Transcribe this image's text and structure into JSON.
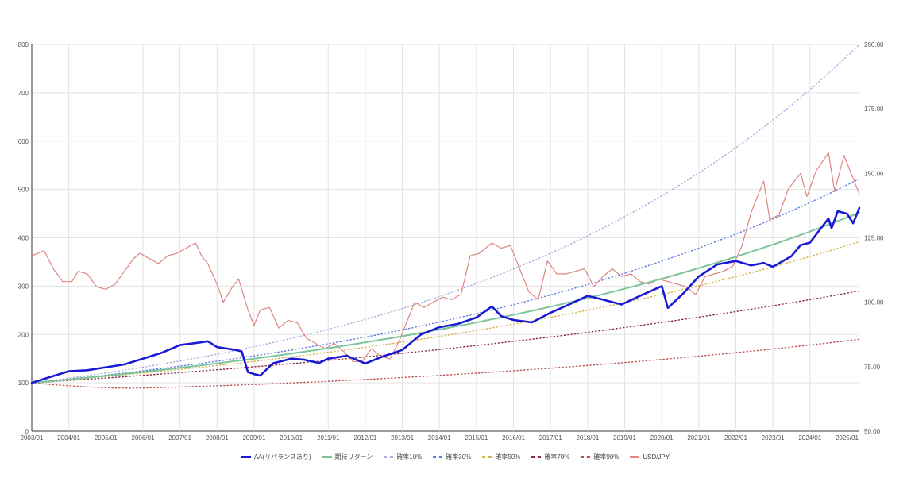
{
  "chart_data": {
    "type": "line",
    "title": "",
    "xlabel": "",
    "ylabel": "",
    "ylim": [
      0,
      800
    ],
    "y2lim": [
      50,
      200
    ],
    "yticks": [
      "0",
      "100",
      "200",
      "300",
      "400",
      "500",
      "600",
      "700",
      "800"
    ],
    "y2ticks": [
      "50.00",
      "75.00",
      "100.00",
      "125.00",
      "150.00",
      "175.00",
      "200.00"
    ],
    "xticks": [
      "2003/01",
      "2004/01",
      "2005/01",
      "2006/01",
      "2007/01",
      "2008/01",
      "2009/01",
      "2010/01",
      "2011/01",
      "2012/01",
      "2013/01",
      "2014/01",
      "2015/01",
      "2016/01",
      "2017/01",
      "2018/01",
      "2019/01",
      "2020/01",
      "2021/01",
      "2022/01",
      "2023/01",
      "2024/01",
      "2025/01"
    ],
    "x_range": [
      "2003/01",
      "2025/05"
    ],
    "grid": true,
    "legend_position": "bottom",
    "series": [
      {
        "name": "AA(リバランスあり)",
        "axis": "left",
        "style": "solid",
        "width": 2.6,
        "color": "#1a1ad6",
        "x": [
          "2003/01",
          "2003/07",
          "2004/01",
          "2004/07",
          "2005/01",
          "2005/07",
          "2006/01",
          "2006/07",
          "2007/01",
          "2007/07",
          "2007/10",
          "2008/01",
          "2008/07",
          "2008/09",
          "2008/11",
          "2009/01",
          "2009/03",
          "2009/07",
          "2010/01",
          "2010/05",
          "2010/10",
          "2011/01",
          "2011/07",
          "2012/01",
          "2012/07",
          "2013/01",
          "2013/07",
          "2014/01",
          "2014/07",
          "2015/01",
          "2015/06",
          "2015/09",
          "2016/01",
          "2016/07",
          "2017/01",
          "2017/07",
          "2018/01",
          "2018/06",
          "2018/12",
          "2019/06",
          "2020/01",
          "2020/03",
          "2020/08",
          "2021/01",
          "2021/07",
          "2022/01",
          "2022/06",
          "2022/10",
          "2023/01",
          "2023/07",
          "2023/10",
          "2024/01",
          "2024/07",
          "2024/08",
          "2024/10",
          "2025/01",
          "2025/03",
          "2025/05"
        ],
        "values": [
          100,
          112,
          124,
          126,
          132,
          138,
          150,
          162,
          178,
          183,
          186,
          174,
          168,
          165,
          122,
          118,
          115,
          140,
          150,
          148,
          141,
          150,
          156,
          140,
          155,
          168,
          200,
          215,
          222,
          235,
          258,
          238,
          230,
          225,
          245,
          262,
          280,
          272,
          262,
          280,
          300,
          255,
          285,
          320,
          345,
          352,
          343,
          348,
          340,
          362,
          385,
          390,
          440,
          420,
          455,
          450,
          430,
          462
        ]
      },
      {
        "name": "期待リターン",
        "axis": "left",
        "style": "solid",
        "width": 2,
        "color": "#7cc49a",
        "fn": "exp",
        "start": 100,
        "end": 452
      },
      {
        "name": "確率10%",
        "axis": "left",
        "style": "dot",
        "width": 1.4,
        "color": "#a9aedd",
        "fn": "exp",
        "start": 100,
        "end": 800
      },
      {
        "name": "確率30%",
        "axis": "left",
        "style": "dot",
        "width": 1.4,
        "color": "#5f7be0",
        "fn": "exp",
        "start": 100,
        "end": 522
      },
      {
        "name": "確率50%",
        "axis": "left",
        "style": "dot",
        "width": 1.4,
        "color": "#d4b24a",
        "fn": "exp",
        "start": 100,
        "end": 392
      },
      {
        "name": "確率70%",
        "axis": "left",
        "style": "dot",
        "width": 1.4,
        "color": "#8a2a3a",
        "fn": "exp",
        "start": 100,
        "end": 290
      },
      {
        "name": "確率90%",
        "axis": "left",
        "style": "dot",
        "width": 1.4,
        "color": "#b8504f",
        "fn": "dip",
        "start": 100,
        "min": 89,
        "end": 190
      },
      {
        "name": "USD/JPY",
        "axis": "right",
        "style": "solid",
        "width": 1.2,
        "color": "#df8680",
        "x": [
          "2003/01",
          "2003/05",
          "2003/08",
          "2003/11",
          "2004/02",
          "2004/04",
          "2004/07",
          "2004/10",
          "2005/01",
          "2005/04",
          "2005/07",
          "2005/10",
          "2005/12",
          "2006/03",
          "2006/06",
          "2006/09",
          "2006/12",
          "2007/03",
          "2007/06",
          "2007/08",
          "2007/10",
          "2008/01",
          "2008/03",
          "2008/06",
          "2008/08",
          "2008/11",
          "2009/01",
          "2009/03",
          "2009/06",
          "2009/09",
          "2009/12",
          "2010/03",
          "2010/06",
          "2010/09",
          "2010/12",
          "2011/03",
          "2011/06",
          "2011/09",
          "2011/12",
          "2012/03",
          "2012/06",
          "2012/09",
          "2012/12",
          "2013/03",
          "2013/05",
          "2013/08",
          "2013/11",
          "2014/02",
          "2014/05",
          "2014/08",
          "2014/11",
          "2015/02",
          "2015/06",
          "2015/09",
          "2015/12",
          "2016/03",
          "2016/06",
          "2016/09",
          "2016/12",
          "2017/03",
          "2017/06",
          "2017/09",
          "2017/12",
          "2018/03",
          "2018/06",
          "2018/09",
          "2018/12",
          "2019/03",
          "2019/06",
          "2019/09",
          "2019/12",
          "2020/03",
          "2020/06",
          "2020/09",
          "2020/12",
          "2021/03",
          "2021/06",
          "2021/09",
          "2021/12",
          "2022/03",
          "2022/06",
          "2022/10",
          "2022/12",
          "2023/03",
          "2023/06",
          "2023/10",
          "2023/12",
          "2024/03",
          "2024/07",
          "2024/09",
          "2024/12",
          "2025/03",
          "2025/05"
        ],
        "values": [
          118,
          120,
          113,
          108,
          108,
          112,
          111,
          106,
          105,
          107,
          112,
          117,
          119,
          117,
          115,
          118,
          119,
          121,
          123,
          118,
          115,
          107,
          100,
          106,
          109,
          97,
          91,
          97,
          98,
          90,
          93,
          92,
          86,
          84,
          82,
          84,
          81,
          77,
          77,
          82,
          79,
          78,
          85,
          94,
          100,
          98,
          100,
          102,
          101,
          103,
          118,
          119,
          123,
          121,
          122,
          113,
          104,
          101,
          116,
          111,
          111,
          112,
          113,
          106,
          110,
          113,
          110,
          111,
          108,
          107,
          109,
          108,
          107,
          106,
          103,
          110,
          111,
          112,
          114,
          122,
          135,
          147,
          132,
          134,
          144,
          150,
          141,
          151,
          158,
          143,
          157,
          148,
          142
        ]
      }
    ]
  }
}
